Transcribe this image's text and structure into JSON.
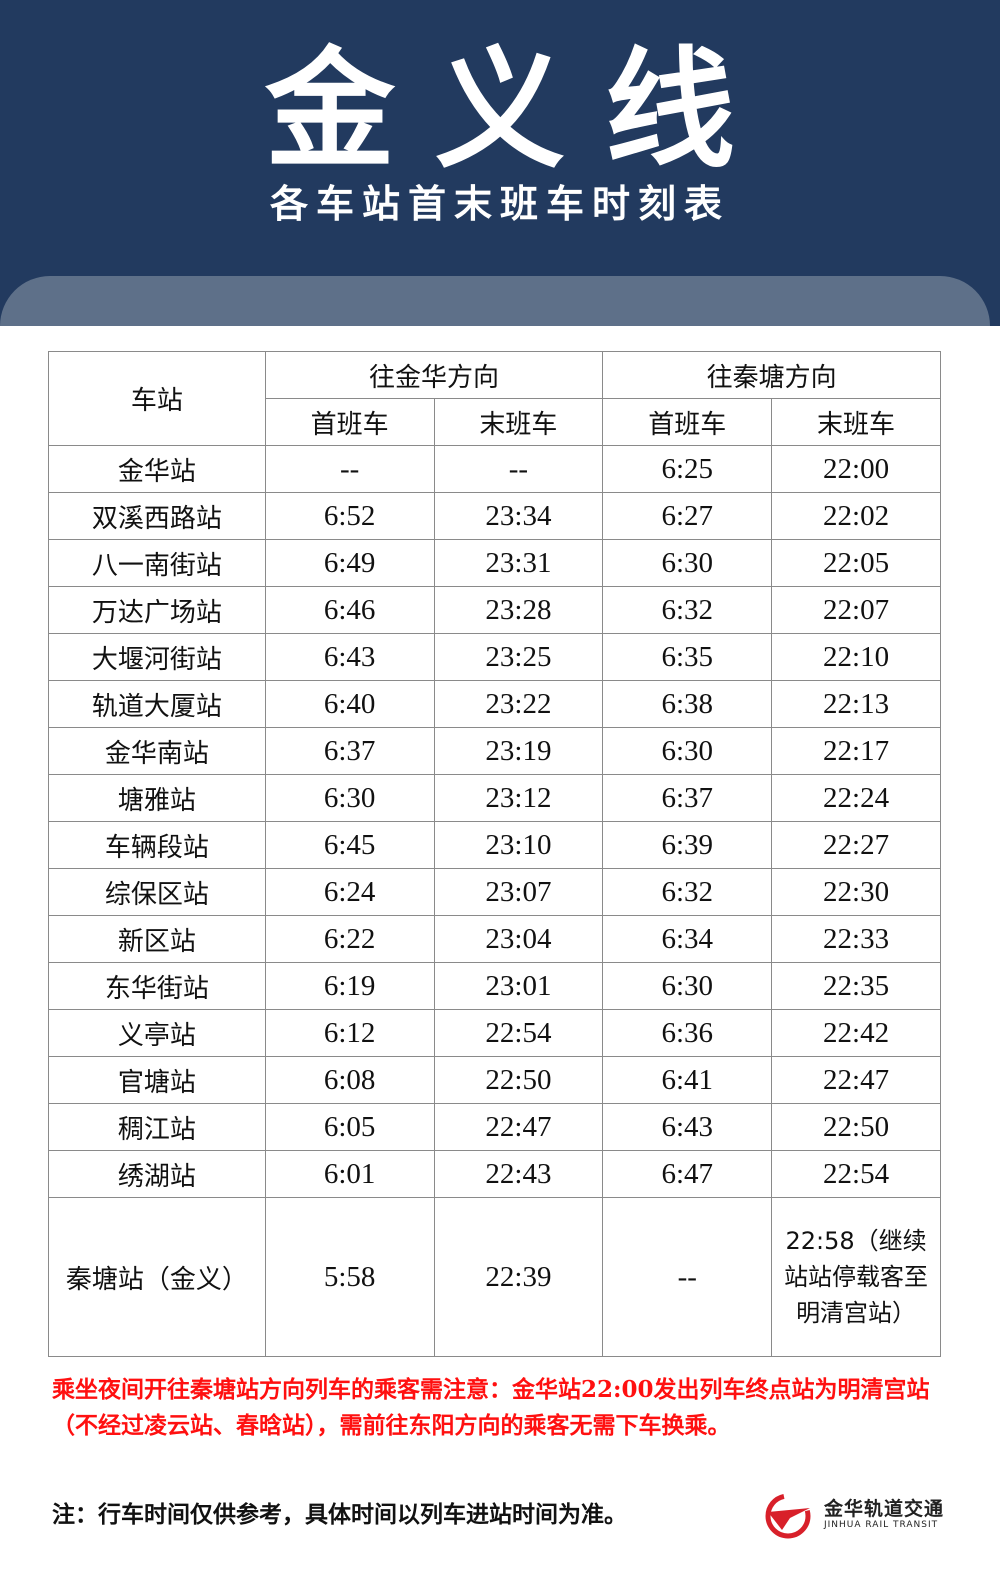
{
  "header": {
    "title": "金义线",
    "subtitle": "各车站首末班车时刻表"
  },
  "table": {
    "station_header": "车站",
    "directions": [
      "往金华方向",
      "往秦塘方向"
    ],
    "sub_headers": [
      "首班车",
      "末班车",
      "首班车",
      "末班车"
    ],
    "rows": [
      [
        "金华站",
        "--",
        "--",
        "6:25",
        "22:00"
      ],
      [
        "双溪西路站",
        "6:52",
        "23:34",
        "6:27",
        "22:02"
      ],
      [
        "八一南街站",
        "6:49",
        "23:31",
        "6:30",
        "22:05"
      ],
      [
        "万达广场站",
        "6:46",
        "23:28",
        "6:32",
        "22:07"
      ],
      [
        "大堰河街站",
        "6:43",
        "23:25",
        "6:35",
        "22:10"
      ],
      [
        "轨道大厦站",
        "6:40",
        "23:22",
        "6:38",
        "22:13"
      ],
      [
        "金华南站",
        "6:37",
        "23:19",
        "6:30",
        "22:17"
      ],
      [
        "塘雅站",
        "6:30",
        "23:12",
        "6:37",
        "22:24"
      ],
      [
        "车辆段站",
        "6:45",
        "23:10",
        "6:39",
        "22:27"
      ],
      [
        "综保区站",
        "6:24",
        "23:07",
        "6:32",
        "22:30"
      ],
      [
        "新区站",
        "6:22",
        "23:04",
        "6:34",
        "22:33"
      ],
      [
        "东华街站",
        "6:19",
        "23:01",
        "6:30",
        "22:35"
      ],
      [
        "义亭站",
        "6:12",
        "22:54",
        "6:36",
        "22:42"
      ],
      [
        "官塘站",
        "6:08",
        "22:50",
        "6:41",
        "22:47"
      ],
      [
        "稠江站",
        "6:05",
        "22:47",
        "6:43",
        "22:50"
      ],
      [
        "绣湖站",
        "6:01",
        "22:43",
        "6:47",
        "22:54"
      ]
    ],
    "last_row": [
      "秦塘站（金义）",
      "5:58",
      "22:39",
      "--",
      "22:58（继续站站停载客至明清宫站）"
    ]
  },
  "warning": "乘坐夜间开往秦塘站方向列车的乘客需注意：金华站22:00发出列车终点站为明清宫站（不经过凌云站、春晗站），需前往东阳方向的乘客无需下车换乘。",
  "footnote": "注：行车时间仅供参考，具体时间以列车进站时间为准。",
  "logo": {
    "name": "金华轨道交通",
    "english": "JINHUA RAIL TRANSIT"
  },
  "colors": {
    "header": "#223a5f",
    "band": "#5e7089",
    "warning": "#ff1010"
  }
}
